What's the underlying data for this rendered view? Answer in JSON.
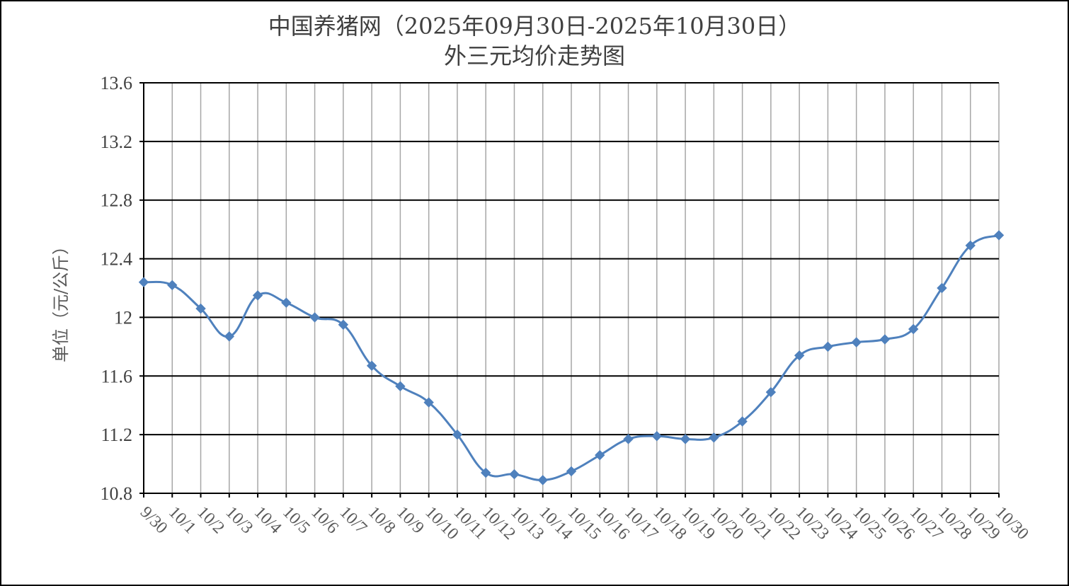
{
  "colors": {
    "series": "#4f81bd",
    "grid_major": "#000000",
    "grid_minor": "#a6a6a6",
    "text": "#404040",
    "frame": "#000000"
  },
  "chart_data": {
    "type": "line",
    "title": "中国养猪网（2025年09月30日-2025年10月30日）",
    "subtitle": "外三元均价走势图",
    "xlabel": "",
    "ylabel": "单位（元/公斤）",
    "ylim": [
      10.8,
      13.6
    ],
    "yticks": [
      "10.8",
      "11.2",
      "11.6",
      "12",
      "12.4",
      "12.8",
      "13.2",
      "13.6"
    ],
    "grid": true,
    "legend": "none",
    "marker": "diamond",
    "smooth": true,
    "categories": [
      "9/30",
      "10/1",
      "10/2",
      "10/3",
      "10/4",
      "10/5",
      "10/6",
      "10/7",
      "10/8",
      "10/9",
      "10/10",
      "10/11",
      "10/12",
      "10/13",
      "10/14",
      "10/15",
      "10/16",
      "10/17",
      "10/18",
      "10/19",
      "10/20",
      "10/21",
      "10/22",
      "10/23",
      "10/24",
      "10/25",
      "10/26",
      "10/27",
      "10/28",
      "10/29",
      "10/30"
    ],
    "series": [
      {
        "values": [
          12.24,
          12.22,
          12.06,
          11.87,
          12.15,
          12.1,
          12.0,
          11.95,
          11.67,
          11.53,
          11.42,
          11.2,
          10.94,
          10.93,
          10.89,
          10.95,
          11.06,
          11.17,
          11.19,
          11.17,
          11.18,
          11.29,
          11.49,
          11.74,
          11.8,
          11.83,
          11.85,
          11.92,
          12.2,
          12.49,
          12.56
        ]
      }
    ]
  }
}
